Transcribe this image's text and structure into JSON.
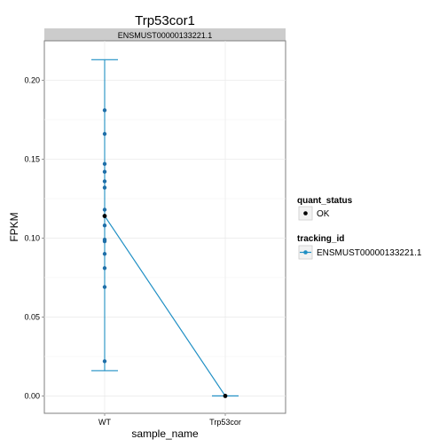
{
  "chart_data": {
    "type": "line",
    "title": "Trp53cor1",
    "facet_label": "ENSMUST00000133221.1",
    "xlabel": "sample_name",
    "ylabel": "FPKM",
    "categories": [
      "WT",
      "Trp53cor"
    ],
    "ylim": [
      -0.011,
      0.225
    ],
    "yticks": [
      0.0,
      0.05,
      0.1,
      0.15,
      0.2
    ],
    "ytick_labels": [
      "0.00",
      "0.05",
      "0.10",
      "0.15",
      "0.20"
    ],
    "grid": true,
    "series": [
      {
        "name": "ENSMUST00000133221.1",
        "color": "#1f8fc4",
        "values": [
          0.114,
          0.0
        ],
        "error_bars": [
          {
            "lower": 0.016,
            "upper": 0.213
          },
          {
            "lower": 0.0,
            "upper": 0.0
          }
        ]
      }
    ],
    "replicates": [
      {
        "category": "WT",
        "values": [
          0.181,
          0.166,
          0.147,
          0.142,
          0.136,
          0.132,
          0.118,
          0.114,
          0.108,
          0.099,
          0.098,
          0.09,
          0.081,
          0.069,
          0.022
        ]
      },
      {
        "category": "Trp53cor",
        "values": [
          0.0
        ]
      }
    ],
    "legend": {
      "position": "right",
      "quant_status": {
        "title": "quant_status",
        "items": [
          {
            "label": "OK",
            "color": "#000000"
          }
        ]
      },
      "tracking_id": {
        "title": "tracking_id",
        "items": [
          {
            "label": "ENSMUST00000133221.1",
            "color": "#1f8fc4"
          }
        ]
      }
    },
    "colors": {
      "line": "#1f8fc4",
      "replicate_point": "#1f6fa8",
      "mean_point": "#000000",
      "panel_border": "#7f7f7f",
      "strip_fill": "#cccccc",
      "grid": "#ebebeb"
    }
  }
}
